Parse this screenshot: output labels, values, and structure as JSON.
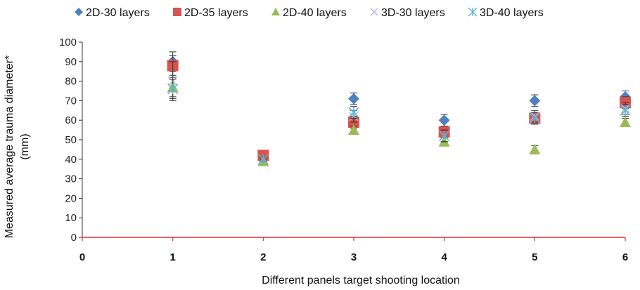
{
  "chart_data": {
    "type": "scatter",
    "xlabel": "Different panels target shooting location",
    "ylabel_lines": [
      "Measured average trauma diameter*",
      "(mm)"
    ],
    "xlim": [
      0,
      6
    ],
    "ylim": [
      0,
      100
    ],
    "xticks": [
      "0",
      "1",
      "2",
      "3",
      "4",
      "5",
      "6"
    ],
    "yticks": [
      "0",
      "10",
      "20",
      "30",
      "40",
      "50",
      "60",
      "70",
      "80",
      "90",
      "100"
    ],
    "grid": false,
    "legend_position": "top",
    "series": [
      {
        "name": "2D-30 layers",
        "marker": "diamond",
        "color": "#4f81bd",
        "x": [
          1,
          2,
          3,
          4,
          5,
          6
        ],
        "y": [
          90,
          41,
          71,
          60,
          70,
          72
        ],
        "err": [
          5,
          1,
          3,
          3,
          3,
          3
        ]
      },
      {
        "name": "2D-35 layers",
        "marker": "square",
        "color": "#d9534f",
        "x": [
          1,
          2,
          3,
          4,
          5,
          6
        ],
        "y": [
          88,
          42,
          59,
          54,
          61,
          69
        ],
        "err": [
          5,
          1,
          3,
          3,
          3,
          3
        ]
      },
      {
        "name": "2D-40 layers",
        "marker": "triangle",
        "color": "#9bbb59",
        "x": [
          1,
          2,
          3,
          4,
          5,
          6
        ],
        "y": [
          77,
          39,
          55,
          49,
          45,
          59
        ],
        "err": [
          5,
          1,
          2,
          2,
          2,
          2
        ]
      },
      {
        "name": "3D-30 layers",
        "marker": "x",
        "color": "#b0b8d0",
        "x": [
          1,
          2,
          3,
          4,
          5,
          6
        ],
        "y": [
          80,
          40,
          62,
          52,
          62,
          66
        ],
        "err": [
          10,
          1,
          3,
          3,
          3,
          3
        ]
      },
      {
        "name": "3D-40 layers",
        "marker": "asterisk",
        "color": "#5ab4d6",
        "x": [
          1,
          2,
          3,
          4,
          5,
          6
        ],
        "y": [
          76,
          40,
          64,
          52,
          61,
          65
        ],
        "err": [
          5,
          1,
          3,
          3,
          3,
          3
        ]
      }
    ]
  }
}
